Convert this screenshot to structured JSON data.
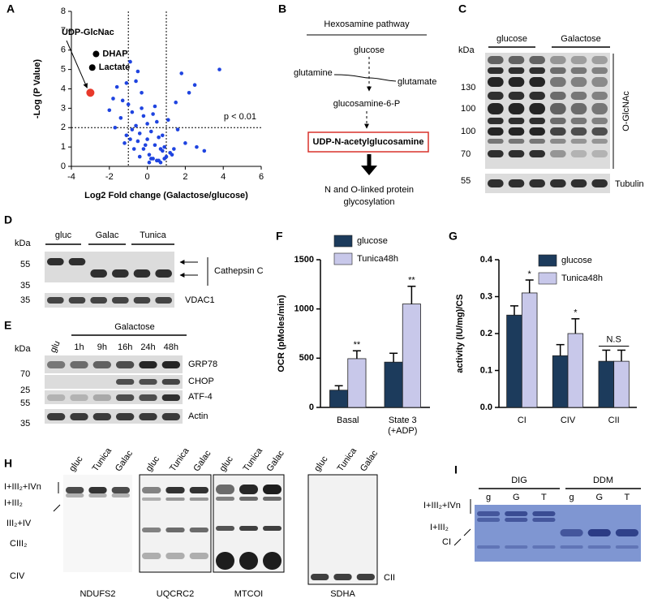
{
  "panel_labels": [
    "A",
    "B",
    "C",
    "D",
    "E",
    "F",
    "G",
    "H",
    "I"
  ],
  "chart_data": [
    {
      "type": "scatter",
      "x_label": "Log2 Fold change (Galactose/glucose)",
      "y_label": "-Log (P Value)",
      "xlim": [
        -4,
        6
      ],
      "ylim": [
        0,
        8
      ],
      "xticks": [
        -4,
        -2,
        0,
        2,
        4,
        6
      ],
      "yticks": [
        0,
        1,
        2,
        3,
        4,
        5,
        6,
        7,
        8
      ],
      "x": [
        -1.6,
        -1.4,
        -1.3,
        -1.2,
        -1.1,
        -1.0,
        -0.9,
        -0.8,
        -0.7,
        -0.6,
        -0.5,
        -0.4,
        -0.3,
        -0.2,
        -0.1,
        0,
        0.1,
        0.2,
        0.3,
        0.4,
        0.5,
        0.6,
        0.7,
        0.8,
        0.9,
        1.0,
        1.1,
        1.2,
        1.4,
        1.6,
        1.8,
        2.0,
        2.2,
        2.6,
        3.0,
        3.8,
        -2.0,
        -1.8,
        -1.7,
        -0.9,
        -0.5,
        -0.2,
        0.2,
        0.6,
        -0.3,
        0.4,
        0.1,
        0.8,
        1.3,
        -0.6,
        0,
        0.3,
        -0.8,
        0.5,
        0.9,
        -1.1,
        1.5,
        2.5,
        -0.4,
        0.7
      ],
      "values": [
        4.1,
        2.5,
        3.4,
        1.2,
        4.3,
        3.2,
        1.4,
        2.8,
        0.9,
        2.1,
        4.9,
        1.7,
        3.8,
        2.6,
        1.1,
        2.2,
        0.6,
        1.8,
        0.4,
        3.1,
        0.3,
        1.5,
        0.2,
        0.8,
        1.0,
        0.5,
        2.4,
        0.7,
        0.9,
        1.9,
        4.8,
        1.2,
        3.8,
        1.0,
        0.8,
        5.0,
        2.9,
        3.5,
        2.0,
        5.4,
        1.3,
        0.9,
        0.4,
        0.3,
        3.0,
        1.1,
        0.2,
        1.6,
        0.6,
        4.4,
        1.4,
        2.7,
        1.9,
        2.3,
        0.4,
        1.6,
        3.3,
        4.2,
        0.5,
        0.9
      ],
      "color": "#1f44e0",
      "thresholds": {
        "x": [
          -1,
          1
        ],
        "y": 2
      },
      "threshold_label": "p < 0.01",
      "highlights": [
        {
          "label": "UDP-GlcNac",
          "x": -3,
          "y": 3.8,
          "color": "#e8392b"
        },
        {
          "label": "DHAP",
          "x": -2.7,
          "y": 5.8,
          "color": "#000000"
        },
        {
          "label": "Lactate",
          "x": -2.9,
          "y": 5.1,
          "color": "#000000"
        }
      ]
    },
    {
      "type": "bar",
      "y_label": "OCR (pMoles/min)",
      "categories": [
        "Basal",
        "State 3\n(+ADP)"
      ],
      "ylim": [
        0,
        1500
      ],
      "yticks": [
        0,
        500,
        1000,
        1500
      ],
      "series": [
        {
          "name": "glucose",
          "color": "#1c3b5c",
          "values": [
            175,
            460
          ],
          "errors": [
            45,
            90
          ]
        },
        {
          "name": "Tunica48h",
          "color": "#c8c8ea",
          "values": [
            495,
            1050
          ],
          "errors": [
            80,
            180
          ],
          "significance": [
            "**",
            "**"
          ]
        }
      ]
    },
    {
      "type": "bar",
      "y_label": "activity (IU/mg)/CS",
      "categories": [
        "CI",
        "CIV",
        "CII"
      ],
      "ylim": [
        0,
        0.4
      ],
      "yticks": [
        {
          "value": 0,
          "label": "0.0"
        },
        0.1,
        0.2,
        0.3,
        0.4
      ],
      "series": [
        {
          "name": "glucose",
          "color": "#1c3b5c",
          "values": [
            0.25,
            0.14,
            0.125
          ],
          "errors": [
            0.025,
            0.03,
            0.03
          ]
        },
        {
          "name": "Tunica48h",
          "color": "#c8c8ea",
          "values": [
            0.31,
            0.2,
            0.125
          ],
          "errors": [
            0.035,
            0.04,
            0.03
          ],
          "significance": [
            "*",
            "*",
            "N.S"
          ]
        }
      ]
    }
  ],
  "pathway": {
    "title": "Hexosamine pathway",
    "glucose": "glucose",
    "glutamine": "glutamine",
    "glutamate": "glutamate",
    "intermediate": "glucosamine-6-P",
    "product": "UDP-N-acetylglucosamine",
    "outcome": [
      "N and O-linked protein",
      "glycosylation"
    ]
  },
  "blot_c": {
    "unit": "kDa",
    "groups": [
      "glucose",
      "Galactose"
    ],
    "markers": [
      "130",
      "100",
      "100",
      "70",
      "55"
    ],
    "labels": [
      "O-GlcNAc",
      "Tubulin"
    ]
  },
  "blot_d": {
    "unit": "kDa",
    "groups": [
      "gluc",
      "Galac",
      "Tunica"
    ],
    "markers": [
      "55",
      "35",
      "35"
    ],
    "labels": [
      "Cathepsin C",
      "VDAC1"
    ]
  },
  "blot_e": {
    "unit": "kDa",
    "group": "Galactose",
    "lanes": [
      "glu",
      "1h",
      "9h",
      "16h",
      "24h",
      "48h"
    ],
    "markers": [
      "70",
      "25",
      "55",
      "35"
    ],
    "labels": [
      "GRP78",
      "CHOP",
      "ATF-4",
      "Actin"
    ]
  },
  "gels_h": {
    "complexes": [
      "I+III₂+IVn",
      "I+III₂",
      "III₂+IV",
      "CIII₂",
      "CIV"
    ],
    "lanes": [
      "gluc",
      "Tunica",
      "Galac"
    ],
    "antibodies": [
      "NDUFS2",
      "UQCRC2",
      "MTCOI",
      "SDHA"
    ],
    "sdha_band": "CII"
  },
  "gel_i": {
    "groups": [
      "DIG",
      "DDM"
    ],
    "lanes": [
      "g",
      "G",
      "T",
      "g",
      "G",
      "T"
    ],
    "complexes": [
      "I+III₂+IVn",
      "I+III₂",
      "CI"
    ]
  }
}
